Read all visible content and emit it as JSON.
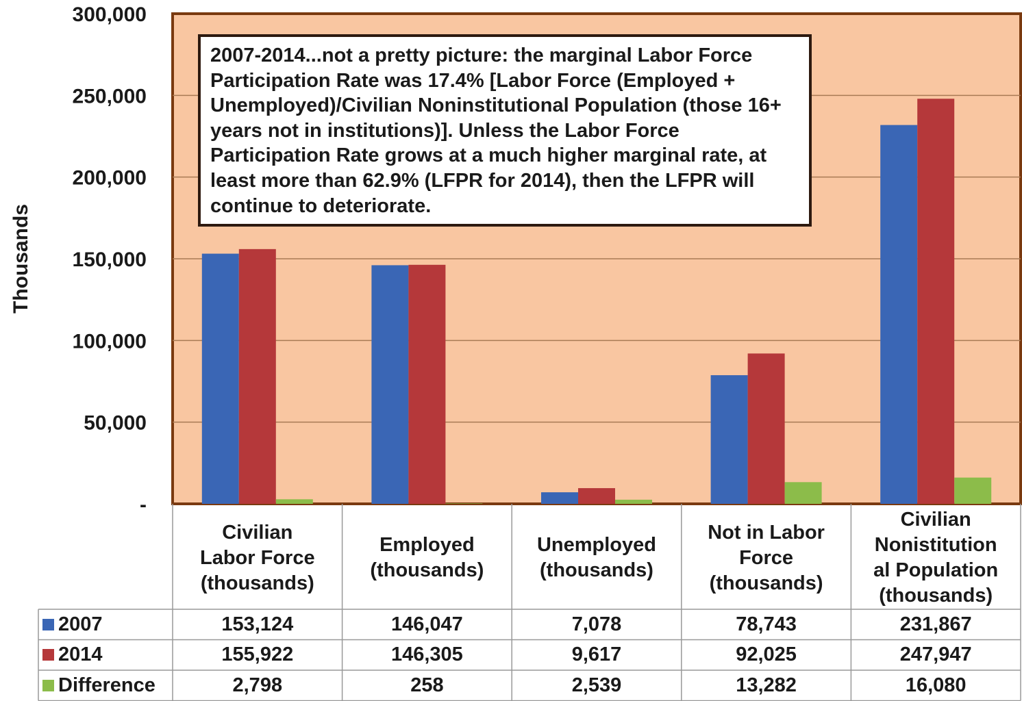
{
  "chart_data": {
    "type": "bar",
    "ylabel": "Thousands",
    "ylim": [
      0,
      300000
    ],
    "yticks": [
      "300,000",
      "250,000",
      "200,000",
      "150,000",
      "100,000",
      "50,000",
      "-"
    ],
    "ytick_values": [
      300000,
      250000,
      200000,
      150000,
      100000,
      50000,
      0
    ],
    "annotation": "2007-2014...not a pretty picture: the marginal Labor Force Participation Rate was 17.4% [Labor Force (Employed + Unemployed)/Civilian Noninstitutional Population (those 16+ years not in institutions)].  Unless the Labor Force Participation Rate grows at a much higher marginal rate, at least more than 62.9% (LFPR for 2014), then the LFPR will continue to deteriorate.",
    "categories": [
      "Civilian\nLabor Force\n(thousands)",
      "Employed\n(thousands)",
      "Unemployed\n(thousands)",
      "Not in Labor\nForce\n(thousands)",
      "Civilian\nNonistitution\nal Population\n(thousands)"
    ],
    "series": [
      {
        "name": "2007",
        "color": "#3a66b5",
        "values": [
          153124,
          146047,
          7078,
          78743,
          231867
        ],
        "labels": [
          "153,124",
          "146,047",
          "7,078",
          "78,743",
          "231,867"
        ]
      },
      {
        "name": "2014",
        "color": "#b5383a",
        "values": [
          155922,
          146305,
          9617,
          92025,
          247947
        ],
        "labels": [
          "155,922",
          "146,305",
          "9,617",
          "92,025",
          "247,947"
        ]
      },
      {
        "name": "Difference",
        "color": "#8cbc4a",
        "values": [
          2798,
          258,
          2539,
          13282,
          16080
        ],
        "labels": [
          "2,798",
          "258",
          "2,539",
          "13,282",
          "16,080"
        ]
      }
    ],
    "plot_background": "#f9c6a1",
    "plot_border_color": "#7a3a10",
    "grid": true,
    "data_table": true
  }
}
